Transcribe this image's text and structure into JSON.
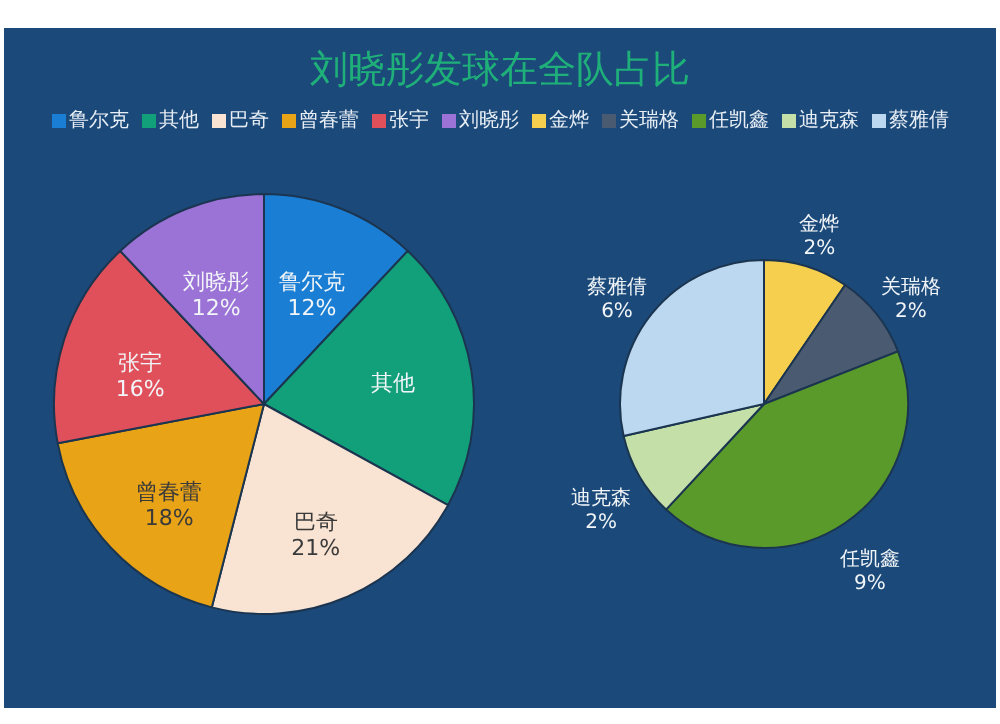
{
  "chart_data": [
    {
      "type": "pie",
      "title": "刘晓彤发球在全队占比",
      "legend": "top",
      "categories": [
        "鲁尔克",
        "其他",
        "巴奇",
        "曾春蕾",
        "张宇",
        "刘晓彤"
      ],
      "values": [
        12,
        21,
        21,
        18,
        16,
        12
      ],
      "value_labels": [
        "12%",
        null,
        "21%",
        "18%",
        "16%",
        "12%"
      ],
      "colors": [
        "#1a7fd4",
        "#12a07a",
        "#f9e3d3",
        "#e8a317",
        "#e0505a",
        "#9b72d6"
      ]
    },
    {
      "type": "pie",
      "legend": "top",
      "categories": [
        "金烨",
        "关瑞格",
        "任凯鑫",
        "迪克森",
        "蔡雅倩"
      ],
      "values": [
        2,
        2,
        9,
        2,
        6
      ],
      "value_labels": [
        "2%",
        "2%",
        "9%",
        "2%",
        "6%"
      ],
      "colors": [
        "#f5cf4d",
        "#4a5a70",
        "#5a9a2a",
        "#c4e0a8",
        "#bcd8f0"
      ]
    }
  ]
}
